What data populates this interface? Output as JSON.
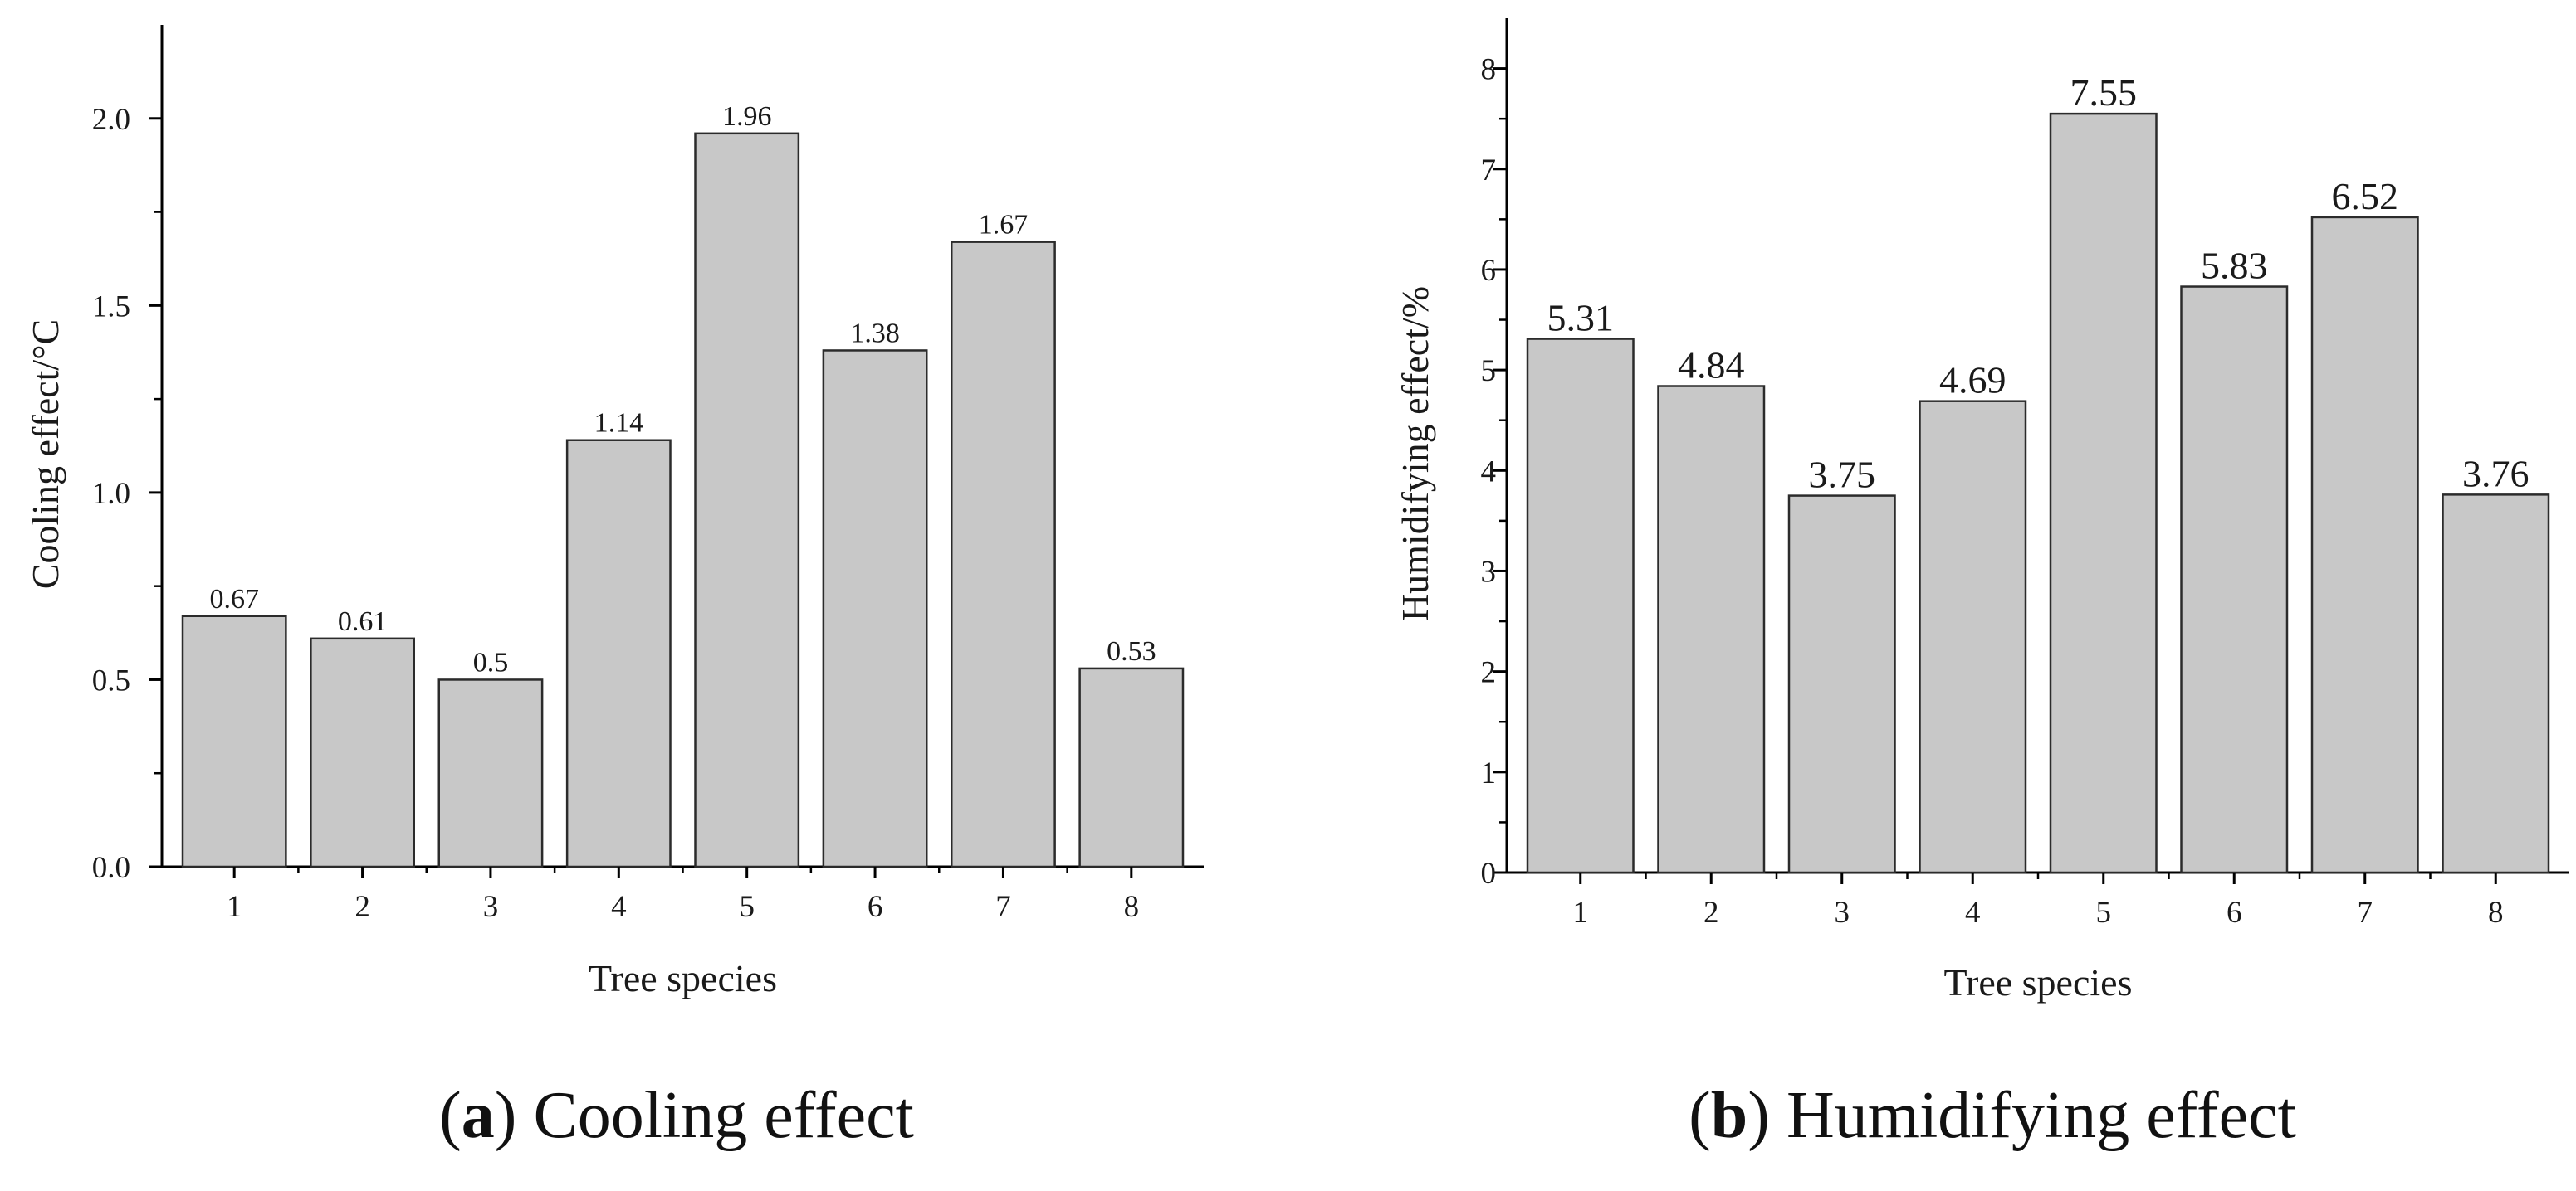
{
  "chart_data": [
    {
      "type": "bar",
      "panel_letter": "a",
      "caption": "Cooling effect",
      "xlabel": "Tree species",
      "ylabel": "Cooling effect/°C",
      "categories": [
        "1",
        "2",
        "3",
        "4",
        "5",
        "6",
        "7",
        "8"
      ],
      "values": [
        0.67,
        0.61,
        0.5,
        1.14,
        1.96,
        1.38,
        1.67,
        0.53
      ],
      "data_labels": [
        "0.67",
        "0.61",
        "0.5",
        "1.14",
        "1.96",
        "1.38",
        "1.67",
        "0.53"
      ],
      "yticks": [
        0.0,
        0.5,
        1.0,
        1.5,
        2.0
      ],
      "ytick_labels": [
        "0.0",
        "0.5",
        "1.0",
        "1.5",
        "2.0"
      ],
      "ylim": [
        0,
        2.25
      ],
      "grid": false,
      "colors": {
        "bar": "#c8c8c8",
        "edge": "#2b2b2b",
        "axis": "#000000"
      }
    },
    {
      "type": "bar",
      "panel_letter": "b",
      "caption": "Humidifying effect",
      "xlabel": "Tree species",
      "ylabel": "Humidifying effect/%",
      "categories": [
        "1",
        "2",
        "3",
        "4",
        "5",
        "6",
        "7",
        "8"
      ],
      "values": [
        5.31,
        4.84,
        3.75,
        4.69,
        7.55,
        5.83,
        6.52,
        3.76
      ],
      "data_labels": [
        "5.31",
        "4.84",
        "3.75",
        "4.69",
        "7.55",
        "5.83",
        "6.52",
        "3.76"
      ],
      "yticks": [
        0,
        1,
        2,
        3,
        4,
        5,
        6,
        7,
        8
      ],
      "ytick_labels": [
        "0",
        "1",
        "2",
        "3",
        "4",
        "5",
        "6",
        "7",
        "8"
      ],
      "ylim": [
        0,
        8.5
      ],
      "grid": false,
      "colors": {
        "bar": "#c8c8c8",
        "edge": "#2b2b2b",
        "axis": "#000000"
      }
    }
  ]
}
